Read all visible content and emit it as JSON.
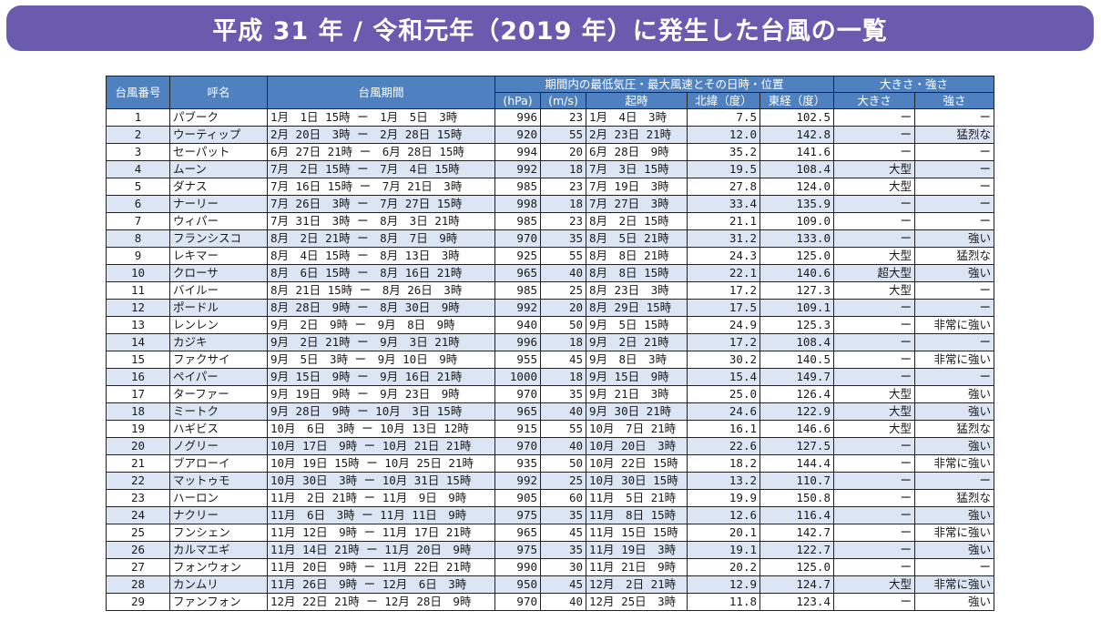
{
  "title": "平成 31 年 / 令和元年（2019 年）に発生した台風の一覧",
  "headers": {
    "number": "台風番号",
    "name": "呼名",
    "period": "台風期間",
    "group_main": "期間内の最低気圧・最大風速とその日時・位置",
    "pressure_unit": "(hPa)",
    "wind_unit": "(m/s)",
    "time": "起時",
    "lat": "北緯（度）",
    "lon": "東経（度）",
    "group_size": "大きさ・強さ",
    "size": "大きさ",
    "strength": "強さ"
  },
  "rows": [
    {
      "no": "1",
      "name": "パブーク",
      "period": "1月　1日 15時 ー　1月　5日　3時",
      "hpa": "996",
      "ms": "23",
      "time": "1月　4日　3時",
      "lat": "7.5",
      "lon": "102.5",
      "size": "ー",
      "strength": "ー"
    },
    {
      "no": "2",
      "name": "ウーティップ",
      "period": "2月 20日　3時 ー　2月 28日 15時",
      "hpa": "920",
      "ms": "55",
      "time": "2月 23日 21時",
      "lat": "12.0",
      "lon": "142.8",
      "size": "ー",
      "strength": "猛烈な"
    },
    {
      "no": "3",
      "name": "セーパット",
      "period": "6月 27日 21時 ー　6月 28日 15時",
      "hpa": "994",
      "ms": "20",
      "time": "6月 28日　9時",
      "lat": "35.2",
      "lon": "141.6",
      "size": "ー",
      "strength": "ー"
    },
    {
      "no": "4",
      "name": "ムーン",
      "period": "7月　2日 15時 ー　7月　4日 15時",
      "hpa": "992",
      "ms": "18",
      "time": "7月　3日 15時",
      "lat": "19.5",
      "lon": "108.4",
      "size": "大型",
      "strength": "ー"
    },
    {
      "no": "5",
      "name": "ダナス",
      "period": "7月 16日 15時 ー　7月 21日　3時",
      "hpa": "985",
      "ms": "23",
      "time": "7月 19日　3時",
      "lat": "27.8",
      "lon": "124.0",
      "size": "大型",
      "strength": "ー"
    },
    {
      "no": "6",
      "name": "ナーリー",
      "period": "7月 26日　3時 ー　7月 27日 15時",
      "hpa": "998",
      "ms": "18",
      "time": "7月 27日　3時",
      "lat": "33.4",
      "lon": "135.9",
      "size": "ー",
      "strength": "ー"
    },
    {
      "no": "7",
      "name": "ウィパー",
      "period": "7月 31日　3時 ー　8月　3日 21時",
      "hpa": "985",
      "ms": "23",
      "time": "8月　2日 15時",
      "lat": "21.1",
      "lon": "109.0",
      "size": "ー",
      "strength": "ー"
    },
    {
      "no": "8",
      "name": "フランシスコ",
      "period": "8月　2日 21時 ー　8月　7日　9時",
      "hpa": "970",
      "ms": "35",
      "time": "8月　5日 21時",
      "lat": "31.2",
      "lon": "133.0",
      "size": "ー",
      "strength": "強い"
    },
    {
      "no": "9",
      "name": "レキマー",
      "period": "8月　4日 15時 ー　8月 13日　3時",
      "hpa": "925",
      "ms": "55",
      "time": "8月　8日 21時",
      "lat": "24.3",
      "lon": "125.0",
      "size": "大型",
      "strength": "猛烈な"
    },
    {
      "no": "10",
      "name": "クローサ",
      "period": "8月　6日 15時 ー　8月 16日 21時",
      "hpa": "965",
      "ms": "40",
      "time": "8月　8日 15時",
      "lat": "22.1",
      "lon": "140.6",
      "size": "超大型",
      "strength": "強い"
    },
    {
      "no": "11",
      "name": "バイルー",
      "period": "8月 21日 15時 ー　8月 26日　3時",
      "hpa": "985",
      "ms": "25",
      "time": "8月 23日　3時",
      "lat": "17.2",
      "lon": "127.3",
      "size": "大型",
      "strength": "ー"
    },
    {
      "no": "12",
      "name": "ポードル",
      "period": "8月 28日　9時 ー　8月 30日　9時",
      "hpa": "992",
      "ms": "20",
      "time": "8月 29日 15時",
      "lat": "17.5",
      "lon": "109.1",
      "size": "ー",
      "strength": "ー"
    },
    {
      "no": "13",
      "name": "レンレン",
      "period": "9月　2日　9時 ー　9月　8日　9時",
      "hpa": "940",
      "ms": "50",
      "time": "9月　5日 15時",
      "lat": "24.9",
      "lon": "125.3",
      "size": "ー",
      "strength": "非常に強い"
    },
    {
      "no": "14",
      "name": "カジキ",
      "period": "9月　2日 21時 ー　9月　3日 21時",
      "hpa": "996",
      "ms": "18",
      "time": "9月　2日 21時",
      "lat": "17.2",
      "lon": "108.4",
      "size": "ー",
      "strength": "ー"
    },
    {
      "no": "15",
      "name": "ファクサイ",
      "period": "9月　5日　3時 ー　9月 10日　9時",
      "hpa": "955",
      "ms": "45",
      "time": "9月　8日　3時",
      "lat": "30.2",
      "lon": "140.5",
      "size": "ー",
      "strength": "非常に強い"
    },
    {
      "no": "16",
      "name": "ペイパー",
      "period": "9月 15日　9時 ー　9月 16日 21時",
      "hpa": "1000",
      "ms": "18",
      "time": "9月 15日　9時",
      "lat": "15.4",
      "lon": "149.7",
      "size": "ー",
      "strength": "ー"
    },
    {
      "no": "17",
      "name": "ターファー",
      "period": "9月 19日　9時 ー　9月 23日　9時",
      "hpa": "970",
      "ms": "35",
      "time": "9月 21日　3時",
      "lat": "25.0",
      "lon": "126.4",
      "size": "大型",
      "strength": "強い"
    },
    {
      "no": "18",
      "name": "ミートク",
      "period": "9月 28日　9時 ー 10月　3日 15時",
      "hpa": "965",
      "ms": "40",
      "time": "9月 30日 21時",
      "lat": "24.6",
      "lon": "122.9",
      "size": "大型",
      "strength": "強い"
    },
    {
      "no": "19",
      "name": "ハギビス",
      "period": "10月　6日　3時 ー 10月 13日 12時",
      "hpa": "915",
      "ms": "55",
      "time": "10月　7日 21時",
      "lat": "16.1",
      "lon": "146.6",
      "size": "大型",
      "strength": "猛烈な"
    },
    {
      "no": "20",
      "name": "ノグリー",
      "period": "10月 17日　9時 ー 10月 21日 21時",
      "hpa": "970",
      "ms": "40",
      "time": "10月 20日　3時",
      "lat": "22.6",
      "lon": "127.5",
      "size": "ー",
      "strength": "強い"
    },
    {
      "no": "21",
      "name": "ブアローイ",
      "period": "10月 19日 15時 ー 10月 25日 21時",
      "hpa": "935",
      "ms": "50",
      "time": "10月 22日 15時",
      "lat": "18.2",
      "lon": "144.4",
      "size": "ー",
      "strength": "非常に強い"
    },
    {
      "no": "22",
      "name": "マットゥモ",
      "period": "10月 30日　3時 ー 10月 31日 15時",
      "hpa": "992",
      "ms": "25",
      "time": "10月 30日 15時",
      "lat": "13.2",
      "lon": "110.7",
      "size": "ー",
      "strength": "ー"
    },
    {
      "no": "23",
      "name": "ハーロン",
      "period": "11月　2日 21時 ー 11月　9日　9時",
      "hpa": "905",
      "ms": "60",
      "time": "11月　5日 21時",
      "lat": "19.9",
      "lon": "150.8",
      "size": "ー",
      "strength": "猛烈な"
    },
    {
      "no": "24",
      "name": "ナクリー",
      "period": "11月　6日　3時 ー 11月 11日　9時",
      "hpa": "975",
      "ms": "35",
      "time": "11月　8日 15時",
      "lat": "12.6",
      "lon": "116.4",
      "size": "ー",
      "strength": "強い"
    },
    {
      "no": "25",
      "name": "フンシェン",
      "period": "11月 12日　9時 ー 11月 17日 21時",
      "hpa": "965",
      "ms": "45",
      "time": "11月 15日 15時",
      "lat": "20.1",
      "lon": "142.7",
      "size": "ー",
      "strength": "非常に強い"
    },
    {
      "no": "26",
      "name": "カルマエギ",
      "period": "11月 14日 21時 ー 11月 20日　9時",
      "hpa": "975",
      "ms": "35",
      "time": "11月 19日　3時",
      "lat": "19.1",
      "lon": "122.7",
      "size": "ー",
      "strength": "強い"
    },
    {
      "no": "27",
      "name": "フォンウォン",
      "period": "11月 20日　9時 ー 11月 22日 21時",
      "hpa": "990",
      "ms": "30",
      "time": "11月 21日　9時",
      "lat": "20.2",
      "lon": "125.0",
      "size": "ー",
      "strength": "ー"
    },
    {
      "no": "28",
      "name": "カンムリ",
      "period": "11月 26日　9時 ー 12月　6日　3時",
      "hpa": "950",
      "ms": "45",
      "time": "12月　2日 21時",
      "lat": "12.9",
      "lon": "124.7",
      "size": "大型",
      "strength": "非常に強い"
    },
    {
      "no": "29",
      "name": "ファンフォン",
      "period": "12月 22日 21時 ー 12月 28日　9時",
      "hpa": "970",
      "ms": "40",
      "time": "12月 25日　3時",
      "lat": "11.8",
      "lon": "123.4",
      "size": "ー",
      "strength": "強い"
    }
  ]
}
